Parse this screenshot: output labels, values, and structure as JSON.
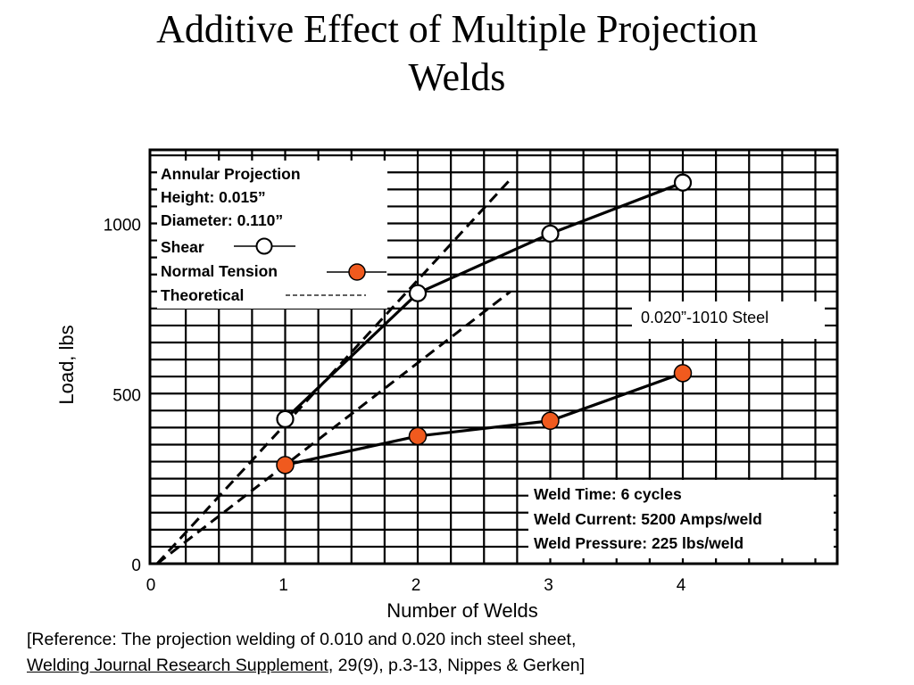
{
  "title_lines": [
    "Additive Effect of Multiple Projection",
    "Welds"
  ],
  "chart_data": {
    "type": "line",
    "title": "Additive Effect of Multiple Projection Welds",
    "xlabel": "Number of Welds",
    "ylabel": "Load, lbs",
    "xlim": [
      0,
      5
    ],
    "ylim": [
      0,
      1225
    ],
    "x_ticks": [
      0,
      1,
      2,
      3,
      4
    ],
    "y_ticks": [
      0,
      500,
      1000
    ],
    "grid": true,
    "legend_position": "top-left",
    "legend": {
      "header_lines": [
        "Annular Projection",
        "Height: 0.015”",
        "Diameter: 0.110”"
      ],
      "entries": [
        {
          "label": "Shear",
          "marker": "open-circle",
          "line": "solid"
        },
        {
          "label": "Normal Tension",
          "marker": "filled-circle",
          "line": "solid"
        },
        {
          "label": "Theoretical",
          "marker": "none",
          "line": "dashed"
        }
      ]
    },
    "series": [
      {
        "name": "Shear",
        "x": [
          1,
          2,
          3,
          4
        ],
        "y": [
          425,
          795,
          970,
          1120
        ],
        "marker": "open-circle",
        "color": "#000000"
      },
      {
        "name": "Normal Tension",
        "x": [
          1,
          2,
          3,
          4
        ],
        "y": [
          290,
          375,
          420,
          560
        ],
        "marker": "filled-circle",
        "color": "#f05a1e"
      }
    ],
    "theoretical_lines": [
      {
        "x": [
          0,
          2.7
        ],
        "y": [
          0,
          1130
        ]
      },
      {
        "x": [
          0,
          2.7
        ],
        "y": [
          0,
          800
        ]
      }
    ],
    "annotations": {
      "material": "0.020”-1010 Steel",
      "conditions": [
        "Weld Time: 6 cycles",
        "Weld Current: 5200 Amps/weld",
        "Weld Pressure: 225 lbs/weld"
      ]
    }
  },
  "reference": {
    "line1": "[Reference:  The projection welding of 0.010 and 0.020 inch steel sheet,",
    "journal": "Welding Journal Research Supplement",
    "line2_rest": ", 29(9), p.3-13, Nippes & Gerken]"
  },
  "colors": {
    "filled_marker": "#f05a1e",
    "text": "#000000",
    "background": "#ffffff"
  }
}
